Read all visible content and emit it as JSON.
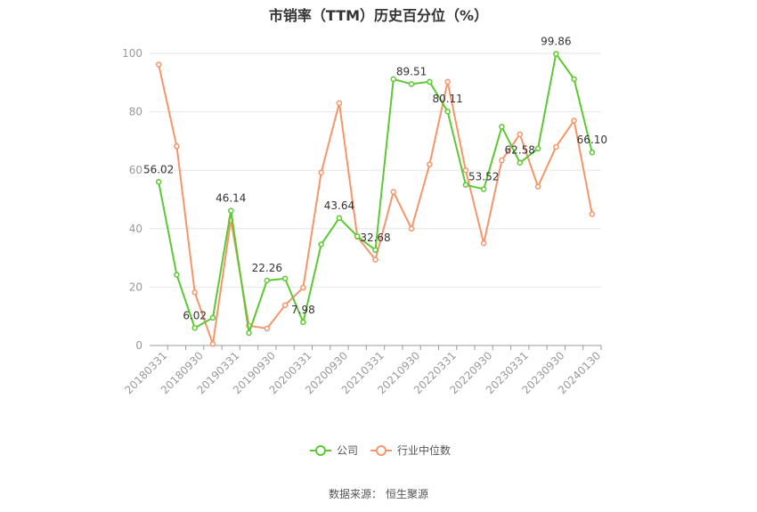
{
  "chart_data": {
    "type": "line",
    "title": "市销率（TTM）历史百分位（%）",
    "ylim": [
      0,
      100
    ],
    "yticks": [
      0,
      20,
      40,
      60,
      80,
      100
    ],
    "grid": "horizontal",
    "legend_position": "bottom-center",
    "x": [
      "20180331",
      "20180630",
      "20180930",
      "20181231",
      "20190331",
      "20190630",
      "20190930",
      "20191231",
      "20200331",
      "20200630",
      "20200930",
      "20201231",
      "20210331",
      "20210630",
      "20210930",
      "20211231",
      "20220331",
      "20220630",
      "20220930",
      "20221231",
      "20230331",
      "20230630",
      "20230930",
      "20231231",
      "20240130"
    ],
    "xtick_labels": [
      "20180331",
      "20180930",
      "20190331",
      "20190930",
      "20200331",
      "20200930",
      "20210331",
      "20210930",
      "20220331",
      "20220930",
      "20230331",
      "20230930",
      "20240130"
    ],
    "series": [
      {
        "name": "公司",
        "color": "#5cc832",
        "values": [
          56.02,
          24.2,
          6.02,
          9.5,
          46.14,
          4.3,
          22.26,
          22.9,
          7.98,
          34.6,
          43.64,
          37.4,
          32.68,
          91.2,
          89.51,
          90.3,
          80.11,
          55.0,
          53.52,
          74.9,
          62.58,
          67.4,
          99.86,
          91.2,
          66.1
        ],
        "labels": [
          "56.02",
          null,
          "6.02",
          null,
          "46.14",
          null,
          "22.26",
          null,
          "7.98",
          null,
          "43.64",
          null,
          "32.68",
          null,
          "89.51",
          null,
          "80.11",
          null,
          "53.52",
          null,
          "62.58",
          null,
          "99.86",
          null,
          "66.10"
        ]
      },
      {
        "name": "行业中位数",
        "color": "#f5956a",
        "values": [
          96.2,
          68.2,
          18.2,
          0.5,
          43.0,
          6.8,
          5.8,
          13.8,
          19.8,
          59.2,
          83.0,
          37.2,
          29.4,
          52.6,
          40.0,
          62.0,
          90.3,
          60.0,
          35.0,
          63.4,
          72.3,
          54.4,
          68.0,
          77.0,
          45.0
        ]
      }
    ]
  },
  "source": {
    "label": "数据来源：",
    "name": "恒生聚源"
  }
}
